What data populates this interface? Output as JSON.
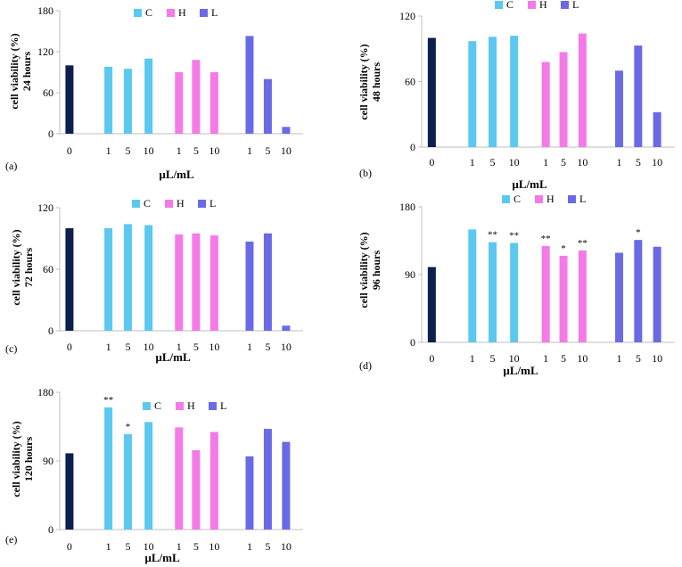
{
  "chart_data": [
    {
      "type": "bar",
      "panel_label": "(a)",
      "ylabel": "cell viability (%)",
      "ylabel2": "24 hours",
      "xlabel": "µL/mL",
      "ylim": [
        0,
        180
      ],
      "yticks": [
        "0",
        "60",
        "120",
        "180"
      ],
      "categories": [
        "0",
        "1",
        "5",
        "10",
        "1",
        "5",
        "10",
        "1",
        "5",
        "10"
      ],
      "values": [
        100,
        98,
        95,
        110,
        90,
        108,
        90,
        143,
        80,
        10
      ],
      "series_of_bar": [
        "ctrl",
        "C",
        "C",
        "C",
        "H",
        "H",
        "H",
        "L",
        "L",
        "L"
      ],
      "annotations": [
        "",
        "",
        "",
        "",
        "",
        "",
        "",
        "",
        "",
        ""
      ],
      "legend": [
        {
          "label": "C",
          "color": "#5bc8f0"
        },
        {
          "label": "H",
          "color": "#f47ae8"
        },
        {
          "label": "L",
          "color": "#6a6ae6"
        }
      ]
    },
    {
      "type": "bar",
      "panel_label": "(b)",
      "ylabel": "cell viability (%)",
      "ylabel2": "48 hours",
      "xlabel": "µL/mL",
      "ylim": [
        0,
        120
      ],
      "yticks": [
        "0",
        "60",
        "120"
      ],
      "categories": [
        "0",
        "1",
        "5",
        "10",
        "1",
        "5",
        "10",
        "1",
        "5",
        "10"
      ],
      "values": [
        100,
        97,
        101,
        102,
        78,
        87,
        104,
        70,
        93,
        32
      ],
      "series_of_bar": [
        "ctrl",
        "C",
        "C",
        "C",
        "H",
        "H",
        "H",
        "L",
        "L",
        "L"
      ],
      "annotations": [
        "",
        "",
        "",
        "",
        "",
        "",
        "",
        "",
        "",
        ""
      ],
      "legend": [
        {
          "label": "C",
          "color": "#5bc8f0"
        },
        {
          "label": "H",
          "color": "#f47ae8"
        },
        {
          "label": "L",
          "color": "#6a6ae6"
        }
      ]
    },
    {
      "type": "bar",
      "panel_label": "(c)",
      "ylabel": "cell viability (%)",
      "ylabel2": "72 hours",
      "xlabel": "µL/mL",
      "ylim": [
        0,
        120
      ],
      "yticks": [
        "0",
        "60",
        "120"
      ],
      "categories": [
        "0",
        "1",
        "5",
        "10",
        "1",
        "5",
        "10",
        "1",
        "5",
        "10"
      ],
      "values": [
        100,
        100,
        104,
        103,
        94,
        95,
        93,
        87,
        95,
        5
      ],
      "series_of_bar": [
        "ctrl",
        "C",
        "C",
        "C",
        "H",
        "H",
        "H",
        "L",
        "L",
        "L"
      ],
      "annotations": [
        "",
        "",
        "",
        "",
        "",
        "",
        "",
        "",
        "",
        ""
      ],
      "legend": [
        {
          "label": "C",
          "color": "#5bc8f0"
        },
        {
          "label": "H",
          "color": "#f47ae8"
        },
        {
          "label": "L",
          "color": "#6a6ae6"
        }
      ]
    },
    {
      "type": "bar",
      "panel_label": "(d)",
      "ylabel": "cell viability (%)",
      "ylabel2": "96 hours",
      "xlabel": "µL/mL",
      "ylim": [
        0,
        180
      ],
      "yticks": [
        "0",
        "90",
        "180"
      ],
      "categories": [
        "0",
        "1",
        "5",
        "10",
        "1",
        "5",
        "10",
        "1",
        "5",
        "10"
      ],
      "values": [
        100,
        150,
        133,
        132,
        128,
        115,
        122,
        119,
        136,
        127
      ],
      "series_of_bar": [
        "ctrl",
        "C",
        "C",
        "C",
        "H",
        "H",
        "H",
        "L",
        "L",
        "L"
      ],
      "annotations": [
        "",
        "",
        "**",
        "**",
        "**",
        "*",
        "**",
        "",
        "*",
        ""
      ],
      "legend": [
        {
          "label": "C",
          "color": "#5bc8f0"
        },
        {
          "label": "H",
          "color": "#f47ae8"
        },
        {
          "label": "L",
          "color": "#6a6ae6"
        }
      ]
    },
    {
      "type": "bar",
      "panel_label": "(e)",
      "ylabel": "cell viability (%)",
      "ylabel2": "120 hours",
      "xlabel": "µL/mL",
      "ylim": [
        0,
        180
      ],
      "yticks": [
        "0",
        "90",
        "180"
      ],
      "categories": [
        "0",
        "1",
        "5",
        "10",
        "1",
        "5",
        "10",
        "1",
        "5",
        "10"
      ],
      "values": [
        100,
        160,
        125,
        141,
        134,
        104,
        128,
        96,
        132,
        115
      ],
      "series_of_bar": [
        "ctrl",
        "C",
        "C",
        "C",
        "H",
        "H",
        "H",
        "L",
        "L",
        "L"
      ],
      "annotations": [
        "",
        "**",
        "*",
        "",
        "",
        "",
        "",
        "",
        "",
        ""
      ],
      "legend": [
        {
          "label": "C",
          "color": "#5bc8f0"
        },
        {
          "label": "H",
          "color": "#f47ae8"
        },
        {
          "label": "L",
          "color": "#6a6ae6"
        }
      ]
    }
  ],
  "colors": {
    "ctrl": "#0d1f4f",
    "C": "#5bc8f0",
    "H": "#f47ae8",
    "L": "#6a6ae6",
    "axis": "#bfbfbf"
  }
}
